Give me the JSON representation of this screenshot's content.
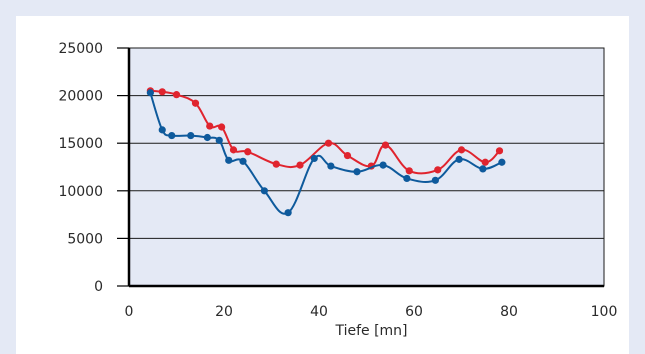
{
  "chart_data": {
    "type": "line",
    "title": "",
    "xlabel": "Tiefe [mn]",
    "ylabel": "",
    "xlim": [
      0,
      100
    ],
    "ylim": [
      0,
      25000
    ],
    "x_ticks": [
      0,
      20,
      40,
      60,
      80,
      100
    ],
    "y_ticks": [
      0,
      5000,
      10000,
      15000,
      20000,
      25000
    ],
    "grid": "horizontal",
    "legend": "none",
    "plot_background": "#e4e9f5",
    "series": [
      {
        "color": "#e0242e",
        "points": [
          [
            4.5,
            20500
          ],
          [
            7,
            20400
          ],
          [
            10,
            20100
          ],
          [
            14,
            19200
          ],
          [
            17,
            16800
          ],
          [
            19.5,
            16700
          ],
          [
            22,
            14300
          ],
          [
            25,
            14100
          ],
          [
            31,
            12800
          ],
          [
            36,
            12700
          ],
          [
            42,
            15000
          ],
          [
            46,
            13700
          ],
          [
            51,
            12600
          ],
          [
            54,
            14800
          ],
          [
            59,
            12100
          ],
          [
            65,
            12200
          ],
          [
            70,
            14300
          ],
          [
            75,
            13000
          ],
          [
            78,
            14200
          ]
        ]
      },
      {
        "color": "#0e5a9c",
        "points": [
          [
            4.5,
            20300
          ],
          [
            7,
            16400
          ],
          [
            9,
            15800
          ],
          [
            13,
            15800
          ],
          [
            16.5,
            15600
          ],
          [
            19,
            15300
          ],
          [
            21,
            13200
          ],
          [
            24,
            13100
          ],
          [
            28.5,
            10000
          ],
          [
            33.5,
            7700
          ],
          [
            39,
            13400
          ],
          [
            42.5,
            12600
          ],
          [
            48,
            12000
          ],
          [
            53.5,
            12700
          ],
          [
            58.5,
            11300
          ],
          [
            64.5,
            11100
          ],
          [
            69.5,
            13300
          ],
          [
            74.5,
            12300
          ],
          [
            78.5,
            13000
          ]
        ]
      }
    ]
  }
}
